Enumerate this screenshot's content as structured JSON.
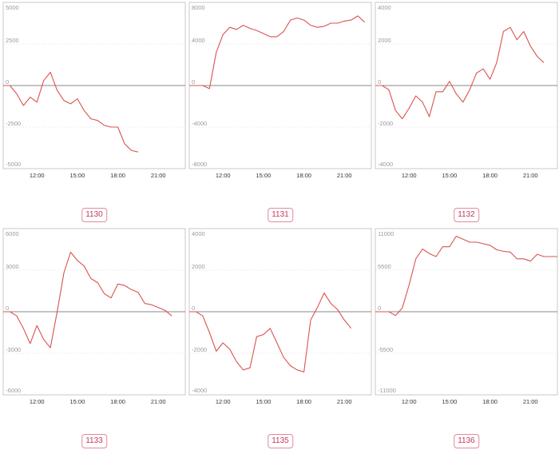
{
  "colors": {
    "line": "#d9534f",
    "badge_border": "#e28a9c",
    "badge_text": "#c43a5b"
  },
  "chart_data": [
    {
      "type": "line",
      "label": "1130",
      "ylim": [
        -5000,
        5000
      ],
      "yticks": [
        5000,
        2500,
        0,
        -2500,
        -5000
      ],
      "xlim": [
        9.5,
        23.0
      ],
      "xticks": [
        12,
        15,
        18,
        21
      ],
      "xtick_labels": [
        "12:00",
        "15:00",
        "18:00",
        "21:00"
      ],
      "x": [
        9.5,
        10.0,
        10.5,
        11.0,
        11.5,
        12.0,
        12.5,
        13.0,
        13.5,
        14.0,
        14.5,
        15.0,
        15.5,
        16.0,
        16.5,
        17.0,
        17.5,
        18.0,
        18.5,
        19.0,
        19.5
      ],
      "values": [
        0,
        0,
        -500,
        -1200,
        -700,
        -1000,
        300,
        800,
        -300,
        -900,
        -1100,
        -800,
        -1500,
        -2000,
        -2100,
        -2400,
        -2500,
        -2500,
        -3500,
        -3900,
        -4000
      ]
    },
    {
      "type": "line",
      "label": "1131",
      "ylim": [
        -8000,
        8000
      ],
      "yticks": [
        8000,
        4000,
        0,
        -4000,
        -8000
      ],
      "xlim": [
        9.5,
        23.0
      ],
      "xticks": [
        12,
        15,
        18,
        21
      ],
      "xtick_labels": [
        "12:00",
        "15:00",
        "18:00",
        "21:00"
      ],
      "x": [
        9.5,
        10.0,
        10.5,
        11.0,
        11.5,
        12.0,
        12.5,
        13.0,
        13.5,
        14.0,
        14.5,
        15.0,
        15.5,
        16.0,
        16.5,
        17.0,
        17.5,
        18.0,
        18.5,
        19.0,
        19.5,
        20.0,
        20.5,
        21.0,
        21.5,
        22.0,
        22.5
      ],
      "values": [
        0,
        0,
        0,
        -300,
        3200,
        4900,
        5600,
        5400,
        5800,
        5500,
        5300,
        5000,
        4700,
        4700,
        5200,
        6300,
        6500,
        6300,
        5800,
        5600,
        5700,
        6000,
        6000,
        6200,
        6300,
        6700,
        6100
      ]
    },
    {
      "type": "line",
      "label": "1132",
      "ylim": [
        -4000,
        4000
      ],
      "yticks": [
        4000,
        2000,
        0,
        -2000,
        -4000
      ],
      "xlim": [
        9.5,
        23.0
      ],
      "xticks": [
        12,
        15,
        18,
        21
      ],
      "xtick_labels": [
        "12:00",
        "15:00",
        "18:00",
        "21:00"
      ],
      "x": [
        9.5,
        10.0,
        10.5,
        11.0,
        11.5,
        12.0,
        12.5,
        13.0,
        13.5,
        14.0,
        14.5,
        15.0,
        15.5,
        16.0,
        16.5,
        17.0,
        17.5,
        18.0,
        18.5,
        19.0,
        19.5,
        20.0,
        20.5,
        21.0,
        21.5,
        22.0
      ],
      "values": [
        0,
        0,
        -200,
        -1200,
        -1600,
        -1100,
        -500,
        -800,
        -1500,
        -300,
        -300,
        200,
        -400,
        -800,
        -200,
        600,
        800,
        300,
        1100,
        2600,
        2800,
        2200,
        2600,
        1900,
        1400,
        1100
      ]
    },
    {
      "type": "line",
      "label": "1133",
      "ylim": [
        -6000,
        6000
      ],
      "yticks": [
        6000,
        3000,
        0,
        -3000,
        -6000
      ],
      "xlim": [
        9.5,
        23.0
      ],
      "xticks": [
        12,
        15,
        18,
        21
      ],
      "xtick_labels": [
        "12:00",
        "15:00",
        "18:00",
        "21:00"
      ],
      "x": [
        9.5,
        10.0,
        10.5,
        11.0,
        11.5,
        12.0,
        12.5,
        13.0,
        13.5,
        14.0,
        14.5,
        15.0,
        15.5,
        16.0,
        16.5,
        17.0,
        17.5,
        18.0,
        18.5,
        19.0,
        19.5,
        20.0,
        20.5,
        21.0,
        21.5,
        22.0
      ],
      "values": [
        0,
        0,
        -300,
        -1200,
        -2300,
        -1000,
        -2000,
        -2600,
        0,
        2800,
        4300,
        3700,
        3300,
        2400,
        2100,
        1300,
        1000,
        2000,
        1900,
        1600,
        1400,
        600,
        500,
        300,
        100,
        -300
      ]
    },
    {
      "type": "line",
      "label": "1135",
      "ylim": [
        -4000,
        4000
      ],
      "yticks": [
        4000,
        2000,
        0,
        -2000,
        -4000
      ],
      "xlim": [
        9.5,
        23.0
      ],
      "xticks": [
        12,
        15,
        18,
        21
      ],
      "xtick_labels": [
        "12:00",
        "15:00",
        "18:00",
        "21:00"
      ],
      "x": [
        9.5,
        10.0,
        10.5,
        11.0,
        11.5,
        12.0,
        12.5,
        13.0,
        13.5,
        14.0,
        14.5,
        15.0,
        15.5,
        16.0,
        16.5,
        17.0,
        17.5,
        18.0,
        18.5,
        19.0,
        19.5,
        20.0,
        20.5,
        21.0,
        21.5
      ],
      "values": [
        0,
        0,
        -200,
        -1000,
        -1900,
        -1500,
        -1800,
        -2400,
        -2800,
        -2700,
        -1200,
        -1100,
        -800,
        -1500,
        -2200,
        -2600,
        -2800,
        -2900,
        -400,
        200,
        900,
        400,
        100,
        -400,
        -800
      ]
    },
    {
      "type": "line",
      "label": "1136",
      "ylim": [
        -11000,
        11000
      ],
      "yticks": [
        11000,
        5500,
        0,
        -5500,
        -11000
      ],
      "xlim": [
        9.5,
        23.0
      ],
      "xticks": [
        12,
        15,
        18,
        21
      ],
      "xtick_labels": [
        "12:00",
        "15:00",
        "18:00",
        "21:00"
      ],
      "x": [
        9.5,
        10.0,
        10.5,
        11.0,
        11.5,
        12.0,
        12.5,
        13.0,
        13.5,
        14.0,
        14.5,
        15.0,
        15.5,
        16.0,
        16.5,
        17.0,
        17.5,
        18.0,
        18.5,
        19.0,
        19.5,
        20.0,
        20.5,
        21.0,
        21.5,
        22.0,
        22.5,
        23.0
      ],
      "values": [
        0,
        0,
        0,
        -500,
        500,
        3500,
        7000,
        8300,
        7700,
        7300,
        8600,
        8600,
        10000,
        9600,
        9200,
        9200,
        9000,
        8800,
        8200,
        8000,
        7900,
        7000,
        7000,
        6700,
        7600,
        7300,
        7300,
        7300
      ]
    }
  ]
}
